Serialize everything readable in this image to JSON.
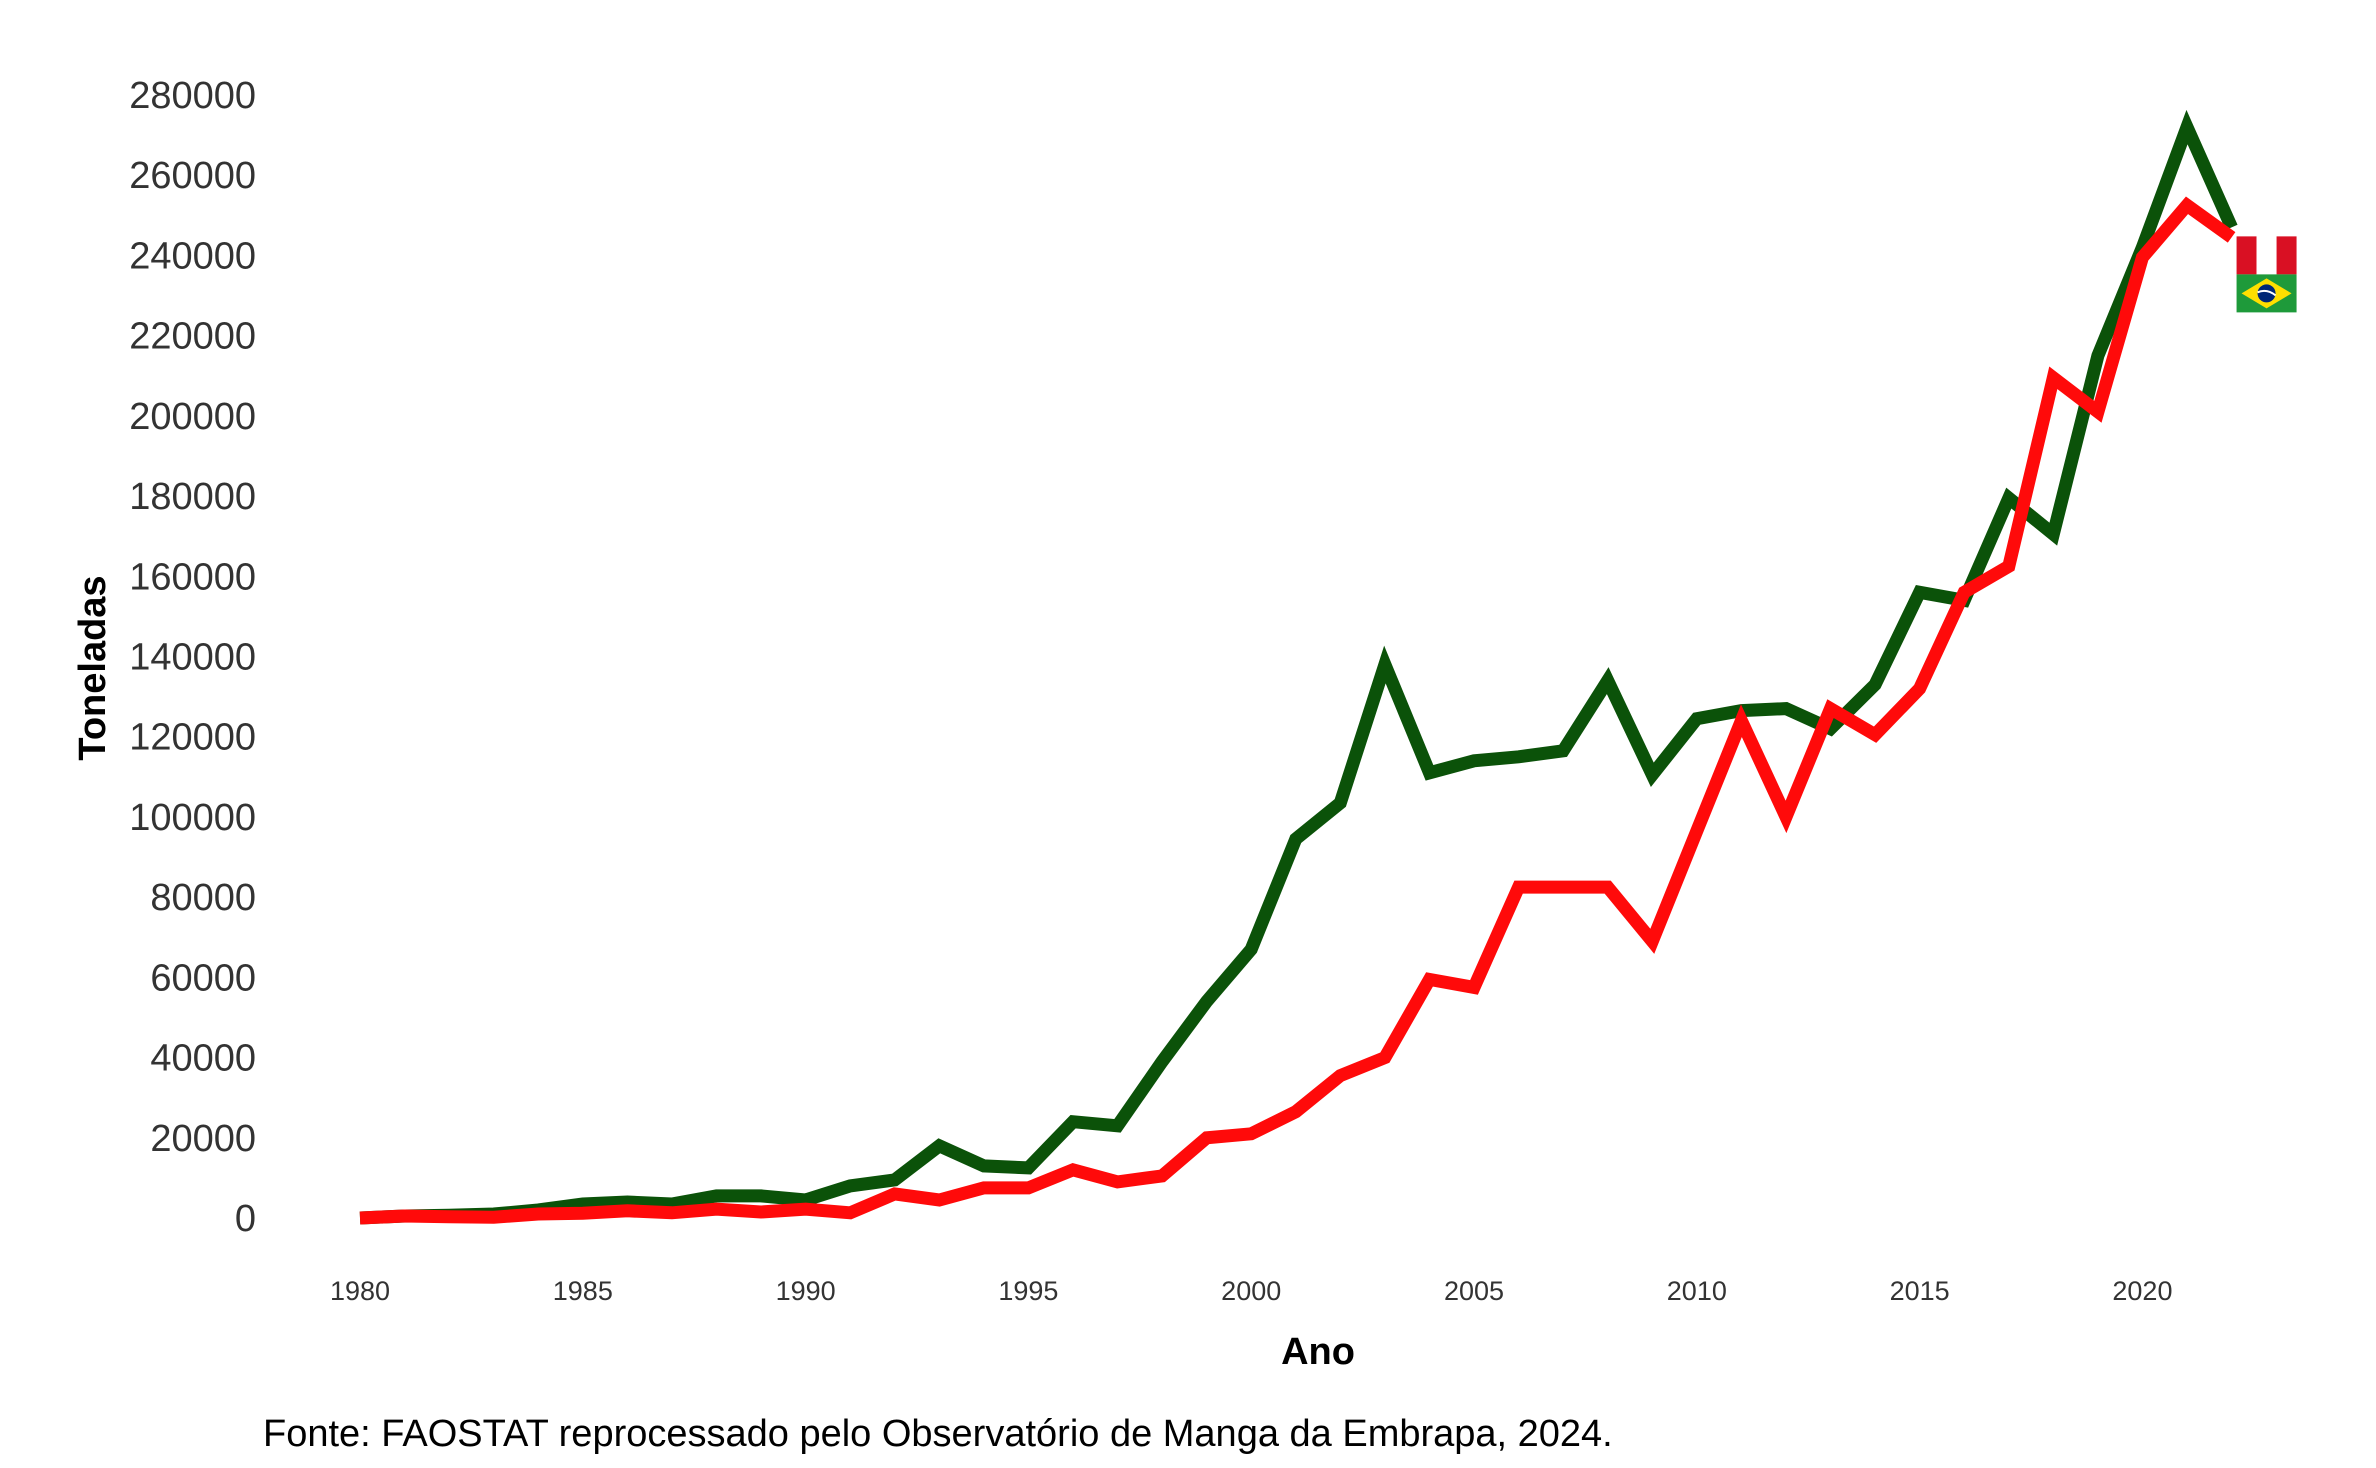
{
  "chart_data": {
    "type": "line",
    "xlabel": "Ano",
    "ylabel": "Toneladas",
    "caption": "Fonte: FAOSTAT reprocessado pelo Observatório de Manga da Embrapa, 2024.",
    "xlim": [
      1980,
      2022
    ],
    "ylim": [
      0,
      280000
    ],
    "x_ticks": [
      1980,
      1985,
      1990,
      1995,
      2000,
      2005,
      2010,
      2015,
      2020
    ],
    "y_ticks": [
      0,
      20000,
      40000,
      60000,
      80000,
      100000,
      120000,
      140000,
      160000,
      180000,
      200000,
      220000,
      240000,
      260000,
      280000
    ],
    "grid": false,
    "legend": "none; series end markers are country flags (Brazil, Peru)",
    "x": [
      1980,
      1981,
      1982,
      1983,
      1984,
      1985,
      1986,
      1987,
      1988,
      1989,
      1990,
      1991,
      1992,
      1993,
      1994,
      1995,
      1996,
      1997,
      1998,
      1999,
      2000,
      2001,
      2002,
      2003,
      2004,
      2005,
      2006,
      2007,
      2008,
      2009,
      2010,
      2011,
      2012,
      2013,
      2014,
      2015,
      2016,
      2017,
      2018,
      2019,
      2020,
      2021,
      2022
    ],
    "series": [
      {
        "color": "#0b5209",
        "flag": "brazil-flag",
        "values": [
          0,
          500,
          700,
          1000,
          2000,
          3500,
          4000,
          3500,
          5500,
          5500,
          4500,
          8000,
          9500,
          18000,
          13000,
          12500,
          24000,
          23000,
          39000,
          54000,
          67000,
          94500,
          103500,
          138000,
          111000,
          114000,
          115000,
          116500,
          134000,
          110500,
          124500,
          126500,
          127000,
          122000,
          133000,
          156000,
          154000,
          179500,
          170500,
          215000,
          242000,
          272000,
          247000
        ]
      },
      {
        "color": "#ff0a0a",
        "flag": "peru-flag",
        "values": [
          0,
          500,
          300,
          200,
          1000,
          1200,
          1800,
          1300,
          2200,
          1500,
          2200,
          1300,
          6000,
          4500,
          7500,
          7500,
          12000,
          9000,
          10500,
          20000,
          21000,
          26500,
          35500,
          40000,
          59500,
          57500,
          82500,
          82500,
          82500,
          69000,
          96500,
          124000,
          100000,
          127000,
          120500,
          132000,
          156000,
          162500,
          209500,
          201000,
          239500,
          252500,
          244500
        ]
      }
    ]
  }
}
